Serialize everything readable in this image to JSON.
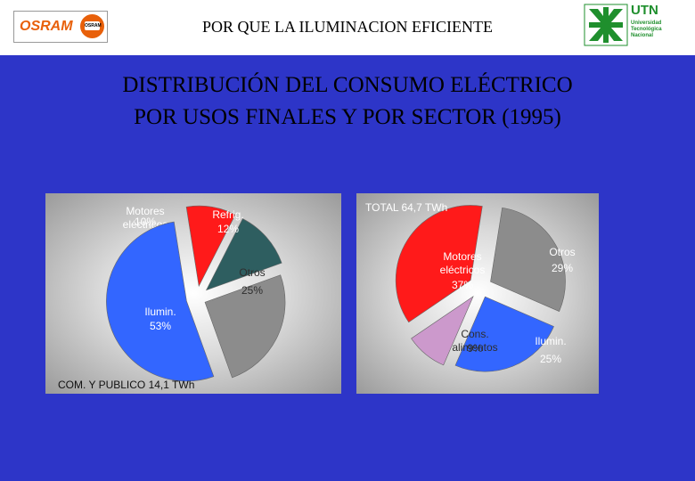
{
  "header": {
    "title": "POR QUE LA ILUMINACION EFICIENTE",
    "osram_logo_text": "OSRAM",
    "osram_badge_text": "OSRAM",
    "utn_name": "UTN",
    "utn_sub_1": "Universidad",
    "utn_sub_2": "Tecnológica",
    "utn_sub_3": "Nacional"
  },
  "slide": {
    "title_line1": "DISTRIBUCIÓN DEL CONSUMO ELÉCTRICO",
    "title_line2": "POR USOS FINALES Y POR SECTOR (1995)"
  },
  "colors": {
    "background": "#2d35c8",
    "red": "#ff1a1a",
    "teal": "#2e5e60",
    "gray": "#8c8c8c",
    "blue": "#3366ff",
    "pink": "#cc99cc"
  },
  "chart_data": [
    {
      "type": "pie",
      "title": "COM. Y PUBLICO   14,1 TWh",
      "slices": [
        {
          "label_1": "Motores",
          "label_2": "eléctricos",
          "value": 10,
          "value_label": "10%",
          "color": "#ff1a1a"
        },
        {
          "label_1": "Refrig.",
          "label_2": "",
          "value": 12,
          "value_label": "12%",
          "color": "#2e5e60"
        },
        {
          "label_1": "Otros",
          "label_2": "",
          "value": 25,
          "value_label": "25%",
          "color": "#8c8c8c"
        },
        {
          "label_1": "Ilumin.",
          "label_2": "",
          "value": 53,
          "value_label": "53%",
          "color": "#3366ff"
        }
      ]
    },
    {
      "type": "pie",
      "title": "TOTAL  64,7 TWh",
      "slices": [
        {
          "label_1": "Otros",
          "label_2": "",
          "value": 29,
          "value_label": "29%",
          "color": "#8c8c8c"
        },
        {
          "label_1": "Ilumin.",
          "label_2": "",
          "value": 25,
          "value_label": "25%",
          "color": "#3366ff"
        },
        {
          "label_1": "Cons.",
          "label_2": "alimentos",
          "value": 9,
          "value_label": "9%",
          "color": "#cc99cc"
        },
        {
          "label_1": "Motores",
          "label_2": "eléctricos",
          "value": 37,
          "value_label": "37%",
          "color": "#ff1a1a"
        }
      ]
    }
  ]
}
